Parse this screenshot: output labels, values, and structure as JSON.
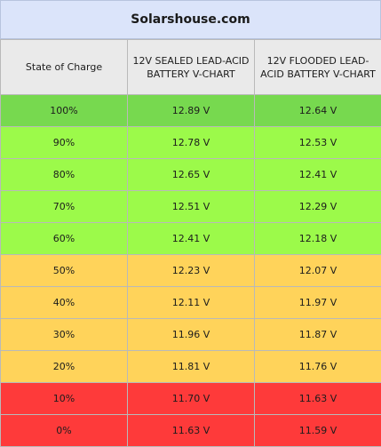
{
  "title": "Solarshouse.com",
  "colors": {
    "header_bg": "#eaeaea",
    "title_bg": "#dbe4fa",
    "full": "#77d94f",
    "high": "#9cfa4a",
    "mid": "#ffd35a",
    "low": "#fe3a3a"
  },
  "chart_data": {
    "type": "table",
    "columns": [
      "State of Charge",
      "12V SEALED LEAD-ACID BATTERY V-CHART",
      "12V FLOODED LEAD-ACID BATTERY V-CHART"
    ],
    "rows": [
      {
        "soc": "100%",
        "sealed": "12.89 V",
        "flooded": "12.64 V",
        "band": "full"
      },
      {
        "soc": "90%",
        "sealed": "12.78 V",
        "flooded": "12.53 V",
        "band": "high"
      },
      {
        "soc": "80%",
        "sealed": "12.65 V",
        "flooded": "12.41 V",
        "band": "high"
      },
      {
        "soc": "70%",
        "sealed": "12.51 V",
        "flooded": "12.29 V",
        "band": "high"
      },
      {
        "soc": "60%",
        "sealed": "12.41 V",
        "flooded": "12.18 V",
        "band": "high"
      },
      {
        "soc": "50%",
        "sealed": "12.23 V",
        "flooded": "12.07 V",
        "band": "mid"
      },
      {
        "soc": "40%",
        "sealed": "12.11 V",
        "flooded": "11.97 V",
        "band": "mid"
      },
      {
        "soc": "30%",
        "sealed": "11.96 V",
        "flooded": "11.87 V",
        "band": "mid"
      },
      {
        "soc": "20%",
        "sealed": "11.81 V",
        "flooded": "11.76 V",
        "band": "mid"
      },
      {
        "soc": "10%",
        "sealed": "11.70 V",
        "flooded": "11.63 V",
        "band": "low"
      },
      {
        "soc": "0%",
        "sealed": "11.63 V",
        "flooded": "11.59 V",
        "band": "low"
      }
    ]
  }
}
